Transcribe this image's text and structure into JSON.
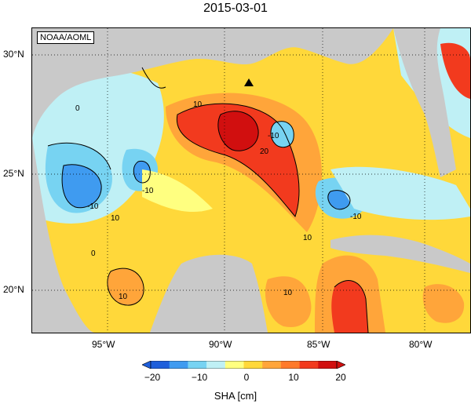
{
  "title": "2015-03-01",
  "credit": "NOAA/AOML",
  "axes": {
    "lat_labels": [
      "30°N",
      "25°N",
      "20°N"
    ],
    "lon_labels": [
      "95°W",
      "90°W",
      "85°W",
      "80°W"
    ]
  },
  "colorbar": {
    "title": "SHA [cm]",
    "ticks": [
      "−20",
      "−10",
      "0",
      "10",
      "20"
    ],
    "range": [
      -20,
      20
    ],
    "colors": [
      "#1f5fdb",
      "#3f9bf0",
      "#77d3f2",
      "#bff0f5",
      "#ffff80",
      "#ffd83a",
      "#ffa53a",
      "#ff7a2a",
      "#f23a1e",
      "#d10f0f"
    ]
  },
  "contour_labels": [
    "10",
    "-10",
    "0",
    "20",
    "-10",
    "-10",
    "10",
    "10",
    "10",
    "0",
    "10",
    "-10"
  ],
  "marker": "triangle"
}
